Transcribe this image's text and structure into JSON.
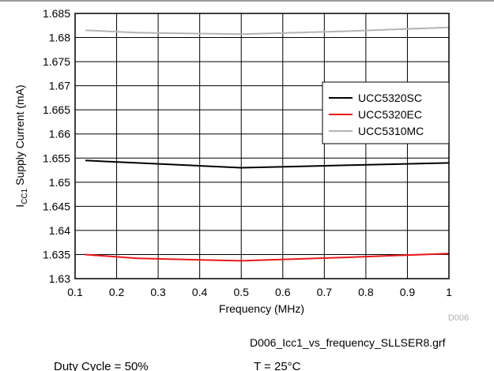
{
  "chart_data": {
    "type": "line",
    "xlabel": "Frequency (MHz)",
    "ylabel_main": "I",
    "ylabel_sub": "CC1",
    "ylabel_rest": " Supply Current (mA)",
    "xlim": [
      0.1,
      1
    ],
    "ylim": [
      1.63,
      1.685
    ],
    "x_ticks": [
      "0.1",
      "0.2",
      "0.3",
      "0.4",
      "0.5",
      "0.6",
      "0.7",
      "0.8",
      "0.9",
      "1"
    ],
    "y_ticks": [
      "1.63",
      "1.635",
      "1.64",
      "1.645",
      "1.65",
      "1.655",
      "1.66",
      "1.665",
      "1.67",
      "1.675",
      "1.68",
      "1.685"
    ],
    "grid": true,
    "legend_position": "right",
    "series": [
      {
        "name": "UCC5320SC",
        "color": "#000000",
        "x": [
          0.125,
          0.25,
          0.5,
          0.75,
          1.0
        ],
        "y": [
          1.6545,
          1.654,
          1.653,
          1.6535,
          1.654
        ]
      },
      {
        "name": "UCC5320EC",
        "color": "#e8191c",
        "x": [
          0.125,
          0.25,
          0.5,
          0.75,
          1.0
        ],
        "y": [
          1.635,
          1.6342,
          1.6337,
          1.6344,
          1.6352
        ]
      },
      {
        "name": "UCC5310MC",
        "color": "#b4b4b4",
        "x": [
          0.125,
          0.25,
          0.5,
          0.75,
          1.0
        ],
        "y": [
          1.6815,
          1.681,
          1.6807,
          1.6813,
          1.6821
        ]
      }
    ],
    "figure_id": "D006"
  },
  "footer": {
    "filename": "D006_Icc1_vs_frequency_SLLSER8.grf",
    "duty_cycle": "Duty Cycle = 50%",
    "temperature": "T = 25°C"
  }
}
